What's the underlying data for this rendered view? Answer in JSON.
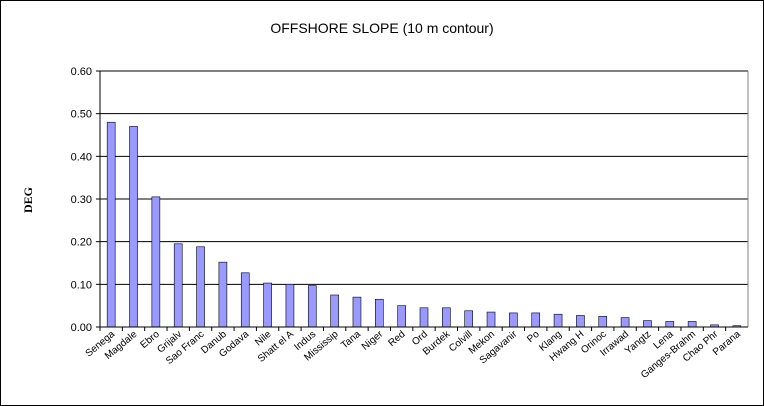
{
  "chart_data": {
    "type": "bar",
    "title": "OFFSHORE SLOPE (10 m contour)",
    "y_label": "DEG",
    "categories": [
      "Senega",
      "Magdale",
      "Ebro",
      "Grijalv",
      "Sao Franc",
      "Danub",
      "Godava",
      "Nile",
      "Shatt el A",
      "Indus",
      "Mississip",
      "Tana",
      "Niger",
      "Red",
      "Ord",
      "Burdek",
      "Colvill",
      "Mekon",
      "Sagavanir",
      "Po",
      "Klang",
      "Hwang H",
      "Orinoc",
      "Irrawad",
      "Yangtz",
      "Lena",
      "Ganges-Brahm",
      "Chao Phr",
      "Parana"
    ],
    "values": [
      0.48,
      0.47,
      0.305,
      0.195,
      0.188,
      0.152,
      0.127,
      0.103,
      0.1,
      0.097,
      0.075,
      0.07,
      0.065,
      0.05,
      0.045,
      0.045,
      0.038,
      0.035,
      0.033,
      0.033,
      0.03,
      0.027,
      0.025,
      0.022,
      0.015,
      0.013,
      0.013,
      0.005,
      0.003
    ],
    "color": "#9999ff",
    "ylim": [
      0,
      0.6
    ],
    "yticks": [
      {
        "value": 0,
        "label": "0.00"
      },
      {
        "value": 0.1,
        "label": "0.10"
      },
      {
        "value": 0.2,
        "label": "0.20"
      },
      {
        "value": 0.3,
        "label": "0.30"
      },
      {
        "value": 0.4,
        "label": "0.40"
      },
      {
        "value": 0.5,
        "label": "0.50"
      },
      {
        "value": 0.6,
        "label": "0.60"
      }
    ],
    "grid": true
  }
}
